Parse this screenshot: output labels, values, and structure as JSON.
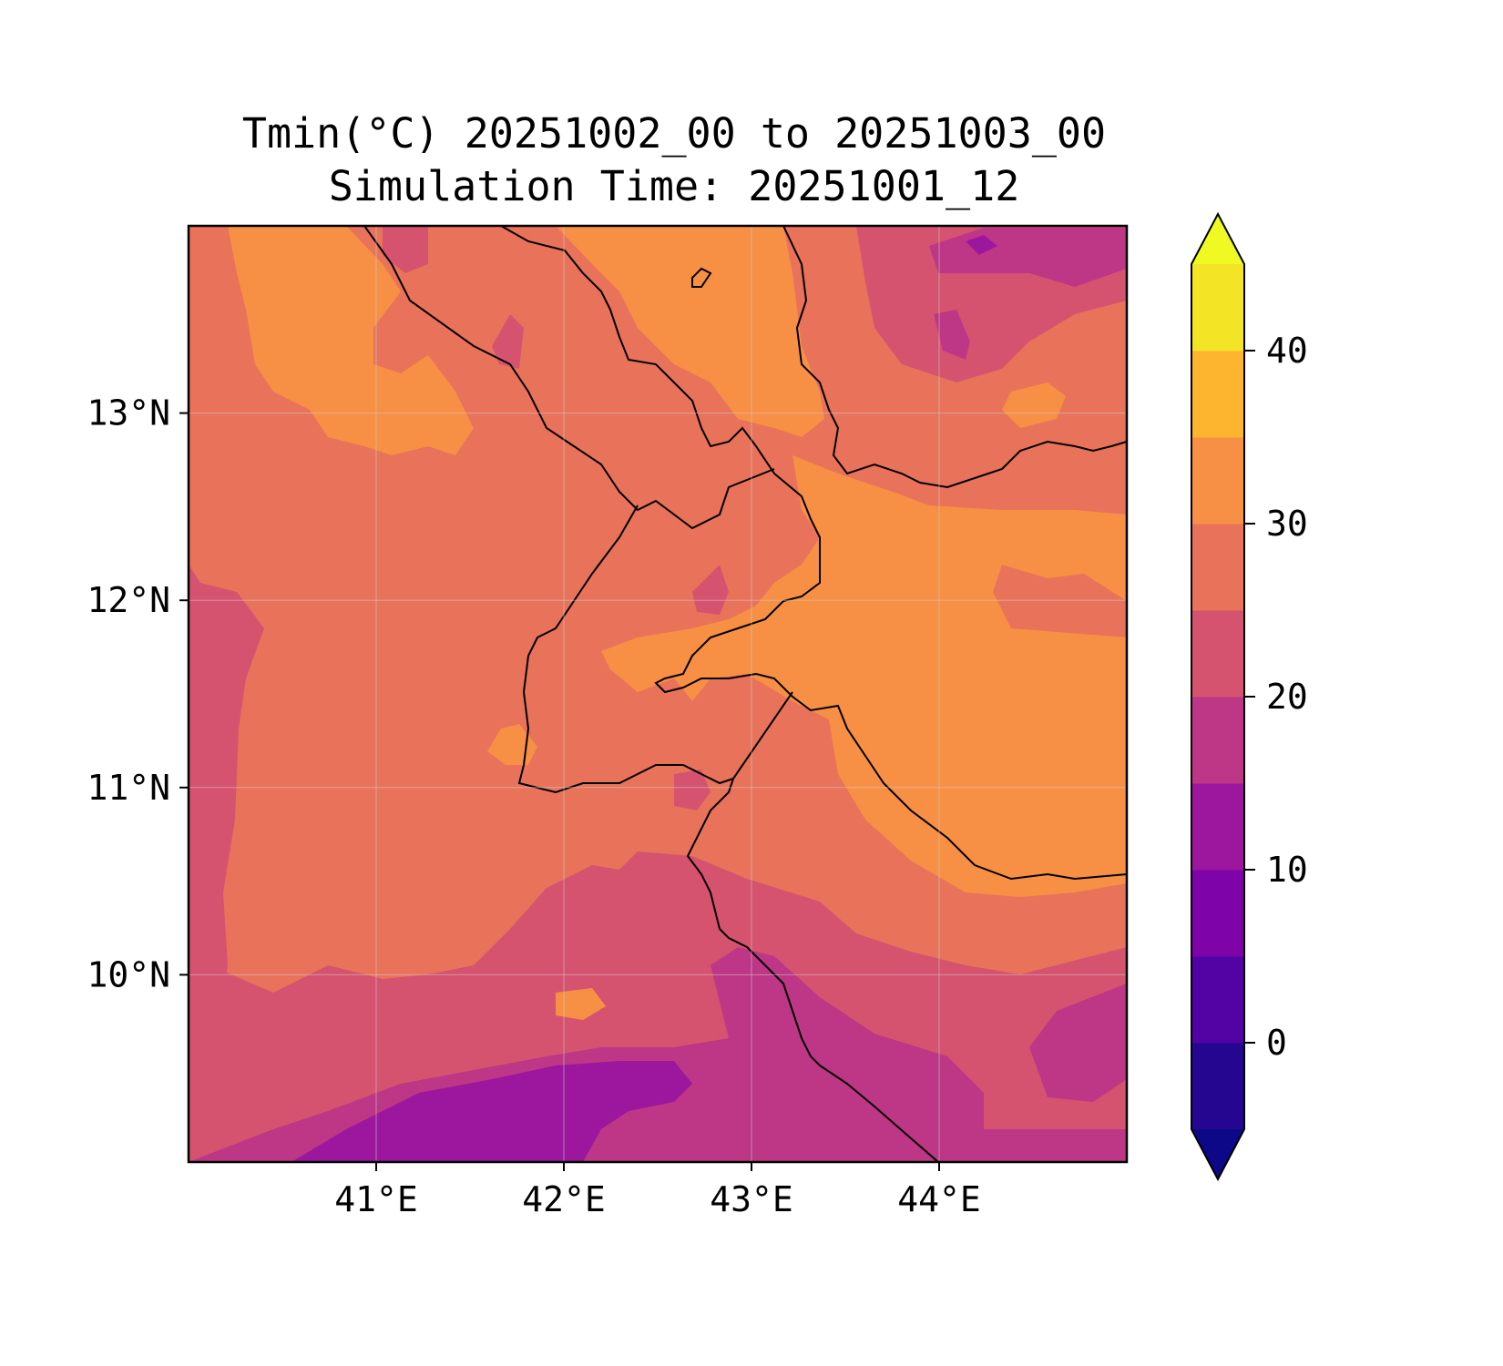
{
  "title_line1": "Tmin(°C) 20251002_00 to 20251003_00",
  "title_line2": "Simulation Time: 20251001_12",
  "map": {
    "lon_range": [
      40.0,
      45.0
    ],
    "lat_range": [
      9.0,
      14.0
    ],
    "x_ticks": [
      {
        "value": 41,
        "label": "41°E"
      },
      {
        "value": 42,
        "label": "42°E"
      },
      {
        "value": 43,
        "label": "43°E"
      },
      {
        "value": 44,
        "label": "44°E"
      }
    ],
    "y_ticks": [
      {
        "value": 13,
        "label": "13°N"
      },
      {
        "value": 12,
        "label": "12°N"
      },
      {
        "value": 11,
        "label": "11°N"
      },
      {
        "value": 10,
        "label": "10°N"
      }
    ],
    "gridlines": true,
    "background_level_color": "#e8735a"
  },
  "colorbar": {
    "levels": [
      -5,
      0,
      5,
      10,
      15,
      20,
      25,
      30,
      35,
      40,
      45
    ],
    "colors": [
      "#240691",
      "#5302a3",
      "#7e03a8",
      "#9c179e",
      "#bd3786",
      "#d5536f",
      "#e8735a",
      "#f79044",
      "#fdb42f",
      "#f3e426"
    ],
    "under_color": "#0d0887",
    "over_color": "#f0f921",
    "extend": "both",
    "ticks": [
      {
        "value": 0,
        "label": "0"
      },
      {
        "value": 10,
        "label": "10"
      },
      {
        "value": 20,
        "label": "20"
      },
      {
        "value": 30,
        "label": "30"
      },
      {
        "value": 40,
        "label": "40"
      }
    ]
  }
}
